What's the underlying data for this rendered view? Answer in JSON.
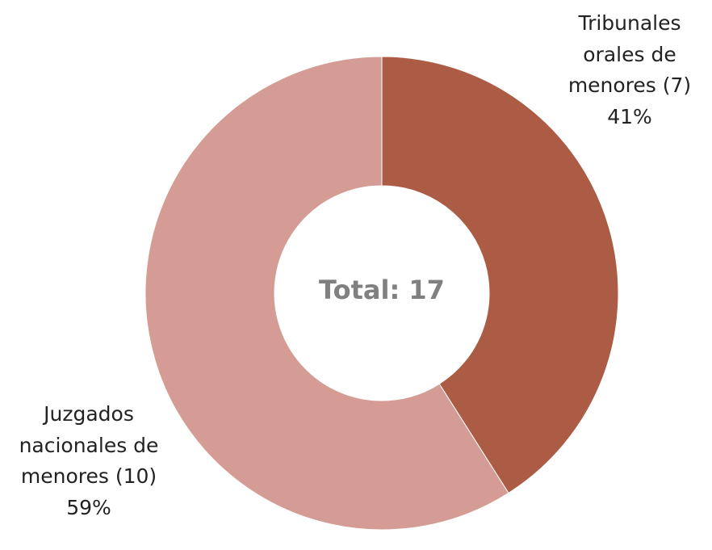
{
  "chart_data": {
    "type": "donut",
    "categories": [
      "Tribunales orales de menores (7)",
      "Juzgados nacionales de menores (10)"
    ],
    "values": [
      41,
      59
    ],
    "value_labels": [
      "41%",
      "59%"
    ],
    "colors": [
      "#ac5c45",
      "#d49c94"
    ],
    "center_label": "Total: 17"
  }
}
